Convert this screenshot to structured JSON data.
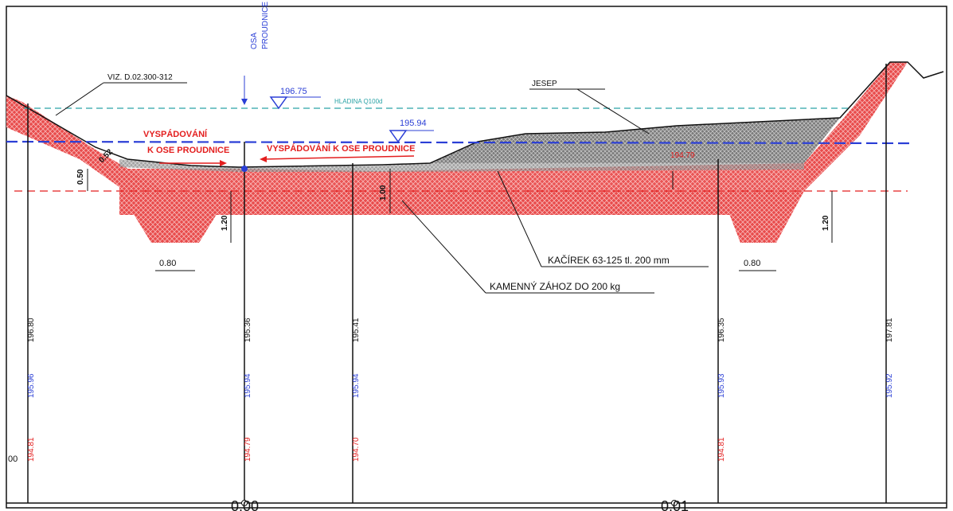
{
  "labels": {
    "osa_proudnice": [
      "OSA",
      "PROUDNICE"
    ],
    "viz": "VIZ. D.02.300-312",
    "level_1": "196.75",
    "hladina": "HLADINA Q100d",
    "level_2": "195.94",
    "jesep": "JESEP",
    "level_red": "194.79",
    "vyspadovani_left": [
      "VYSPÁDOVÁNÍ",
      "K OSE PROUDNICE"
    ],
    "vyspadovani_mid": "VYSPÁDOVÁNÍ K OSE PROUDNICE",
    "kacirek": "KAČÍREK 63-125 tl. 200 mm",
    "kamenny": "KAMENNÝ ZÁHOZ DO 200 kg",
    "dim_052": "0.52",
    "dim_050": "0.50",
    "dim_100": "1.00",
    "dim_120_left": "1.20",
    "dim_120_right": "1.20",
    "dim_080_left": "0.80",
    "dim_080_right": "0.80",
    "left_edge_label": "00",
    "chainage_0": "0.00",
    "chainage_1": "0.01"
  },
  "stations": [
    {
      "black": "196.80",
      "blue": "195.96",
      "red": "194.81"
    },
    {
      "black": "195.36",
      "blue": "195.94",
      "red": "194.79"
    },
    {
      "black": "195.41",
      "blue": "195.94",
      "red": "194.70"
    },
    {
      "black": "196.35",
      "blue": "195.93",
      "red": "194.81"
    },
    {
      "black": "197.81",
      "blue": "195.92",
      "red": ""
    }
  ],
  "colors": {
    "red_fill": "#e84b4b",
    "gravel_fill": "#8c8c8c",
    "blue_line": "#2b3fd6",
    "cyan_line": "#2aa3a6",
    "red_text": "#e31e1e",
    "blue_text": "#2b3fd6",
    "black": "#111111"
  }
}
